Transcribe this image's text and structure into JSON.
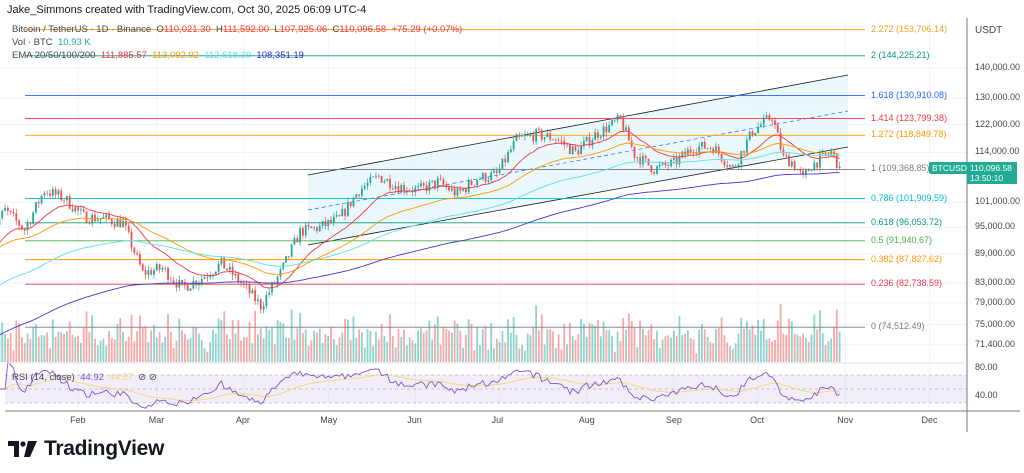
{
  "header": {
    "credit": "Jake_Simmons created with TradingView.com, Oct 30, 2025 06:09 UTC-4"
  },
  "legend": {
    "symbol": "Bitcoin / TetherUS · 1D · Binance",
    "o_label": "O",
    "open": "110,021.30",
    "h_label": "H",
    "high": "111,592.00",
    "l_label": "L",
    "low": "107,925.06",
    "c_label": "C",
    "close": "110,096.58",
    "change": "+75.29 (+0.07%)",
    "vol_label": "Vol · BTC",
    "vol": "10.93 K",
    "ema_label": "EMA 20/50/100/200",
    "ema20": "111,885.57",
    "ema50": "113,092.92",
    "ema100": "112,618.39",
    "ema200": "108,351.19",
    "rsi_label": "RSI (14, close)",
    "rsi": "44.92",
    "rsi_ma": "44.57"
  },
  "colors": {
    "up": "#26a69a",
    "down": "#ef5350",
    "ema20": "#f23645",
    "ema50": "#ff9800",
    "ema100": "#5ce1e6",
    "ema200": "#3f37c9",
    "rsi": "#7e57c2",
    "rsi_ma": "#f5d76e",
    "channel_fill": "#e6f6fa"
  },
  "price_axis": {
    "currency": "USDT",
    "ticks": [
      "140,000.00",
      "130,000.00",
      "122,000.00",
      "114,000.00",
      "101,000.00",
      "95,000.00",
      "89,000.00",
      "83,000.00",
      "79,000.00",
      "75,000.00",
      "71,400.00"
    ],
    "last_symbol": "BTCUSDT",
    "last_price": "110,096.58",
    "countdown": "13:50:10"
  },
  "rsi_axis": {
    "ticks": [
      "80.00",
      "40.00"
    ]
  },
  "time_axis": {
    "ticks": [
      "Feb",
      "Mar",
      "Apr",
      "May",
      "Jun",
      "Jul",
      "Aug",
      "Sep",
      "Oct",
      "Nov",
      "Dec"
    ]
  },
  "fib_levels": [
    {
      "label": "2.272 (153,706.14)",
      "price": 153706.14,
      "color": "#f7a21b"
    },
    {
      "label": "2 (144,225.21)",
      "price": 144225.21,
      "color": "#089981"
    },
    {
      "label": "1.618 (130,910.08)",
      "price": 130910.08,
      "color": "#2962ff"
    },
    {
      "label": "1.414 (123,799.38)",
      "price": 123799.38,
      "color": "#f23645"
    },
    {
      "label": "1.272 (118,849.78)",
      "price": 118849.78,
      "color": "#ff9800"
    },
    {
      "label": "1 (109,368.85)",
      "price": 109368.85,
      "color": "#787b86"
    },
    {
      "label": "0.786 (101,909.59)",
      "price": 101909.59,
      "color": "#00bcd4"
    },
    {
      "label": "0.618 (96,053.72)",
      "price": 96053.72,
      "color": "#089981"
    },
    {
      "label": "0.5 (91,940.67)",
      "price": 91940.67,
      "color": "#4caf50"
    },
    {
      "label": "0.382 (87,827.62)",
      "price": 87827.62,
      "color": "#ff9800"
    },
    {
      "label": "0.236 (82,738.59)",
      "price": 82738.59,
      "color": "#f23645"
    },
    {
      "label": "0 (74,512.49)",
      "price": 74512.49,
      "color": "#787b86"
    }
  ],
  "chart_data": {
    "type": "candlestick",
    "symbol": "BTCUSDT",
    "interval": "1D",
    "y_scale": "log",
    "ylim": [
      70000,
      160000
    ],
    "x_range": [
      "2025-01-01",
      "2025-12-10"
    ],
    "approx_closes": [
      [
        "2025-01-01",
        94000
      ],
      [
        "2025-01-06",
        99000
      ],
      [
        "2025-01-13",
        94500
      ],
      [
        "2025-01-20",
        104000
      ],
      [
        "2025-01-27",
        102000
      ],
      [
        "2025-02-03",
        97500
      ],
      [
        "2025-02-10",
        97000
      ],
      [
        "2025-02-17",
        96000
      ],
      [
        "2025-02-24",
        85000
      ],
      [
        "2025-03-03",
        86000
      ],
      [
        "2025-03-10",
        82000
      ],
      [
        "2025-03-17",
        84000
      ],
      [
        "2025-03-24",
        87000
      ],
      [
        "2025-03-31",
        83000
      ],
      [
        "2025-04-07",
        78500
      ],
      [
        "2025-04-14",
        85000
      ],
      [
        "2025-04-21",
        94000
      ],
      [
        "2025-04-28",
        95000
      ],
      [
        "2025-05-05",
        97000
      ],
      [
        "2025-05-12",
        104000
      ],
      [
        "2025-05-19",
        107500
      ],
      [
        "2025-05-26",
        105000
      ],
      [
        "2025-06-02",
        104000
      ],
      [
        "2025-06-09",
        106000
      ],
      [
        "2025-06-16",
        103000
      ],
      [
        "2025-06-23",
        107000
      ],
      [
        "2025-06-30",
        108000
      ],
      [
        "2025-07-07",
        117500
      ],
      [
        "2025-07-14",
        119000
      ],
      [
        "2025-07-21",
        118000
      ],
      [
        "2025-07-28",
        114000
      ],
      [
        "2025-08-04",
        119000
      ],
      [
        "2025-08-13",
        123500
      ],
      [
        "2025-08-18",
        113500
      ],
      [
        "2025-08-25",
        109500
      ],
      [
        "2025-09-01",
        111000
      ],
      [
        "2025-09-08",
        115500
      ],
      [
        "2025-09-15",
        115500
      ],
      [
        "2025-09-22",
        109500
      ],
      [
        "2025-09-29",
        120000
      ],
      [
        "2025-10-06",
        124500
      ],
      [
        "2025-10-10",
        112500
      ],
      [
        "2025-10-13",
        111500
      ],
      [
        "2025-10-17",
        107000
      ],
      [
        "2025-10-20",
        110500
      ],
      [
        "2025-10-27",
        114000
      ],
      [
        "2025-10-30",
        110096.58
      ]
    ],
    "channel": {
      "start": "2025-04-22",
      "end": "2025-10-31"
    },
    "grid": true
  }
}
